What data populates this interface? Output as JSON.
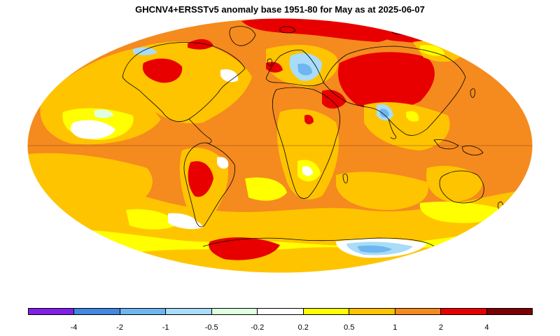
{
  "title": "GHCNV4+ERSSTv5 anomaly base 1951-80 for May as at 2025-06-07",
  "map": {
    "projection": "mollweide",
    "ocean_background_color": "#f58a1e",
    "land_outline_color": "#000000",
    "equator_line_color": "#8b4513",
    "region_colors": {
      "dark-red": "#7b0000",
      "red": "#e80000",
      "orange": "#f58a1e",
      "light-orange": "#ffc400",
      "yellow": "#ffff00",
      "white": "#ffffff",
      "pale-green": "#e0ffe0",
      "light-blue": "#a8dcf8",
      "sky-blue": "#6eb6f0",
      "blue": "#4088e0",
      "violet": "#8020e8"
    }
  },
  "legend": {
    "colors": [
      "#8020e8",
      "#4088e0",
      "#6eb6f0",
      "#a8dcf8",
      "#e0ffe0",
      "#ffffff",
      "#ffff00",
      "#ffc400",
      "#f58a1e",
      "#e80000",
      "#7b0000"
    ],
    "labels": [
      "-4",
      "-2",
      "-1",
      "-0.5",
      "-0.2",
      "0.2",
      "0.5",
      "1",
      "2",
      "4"
    ]
  }
}
